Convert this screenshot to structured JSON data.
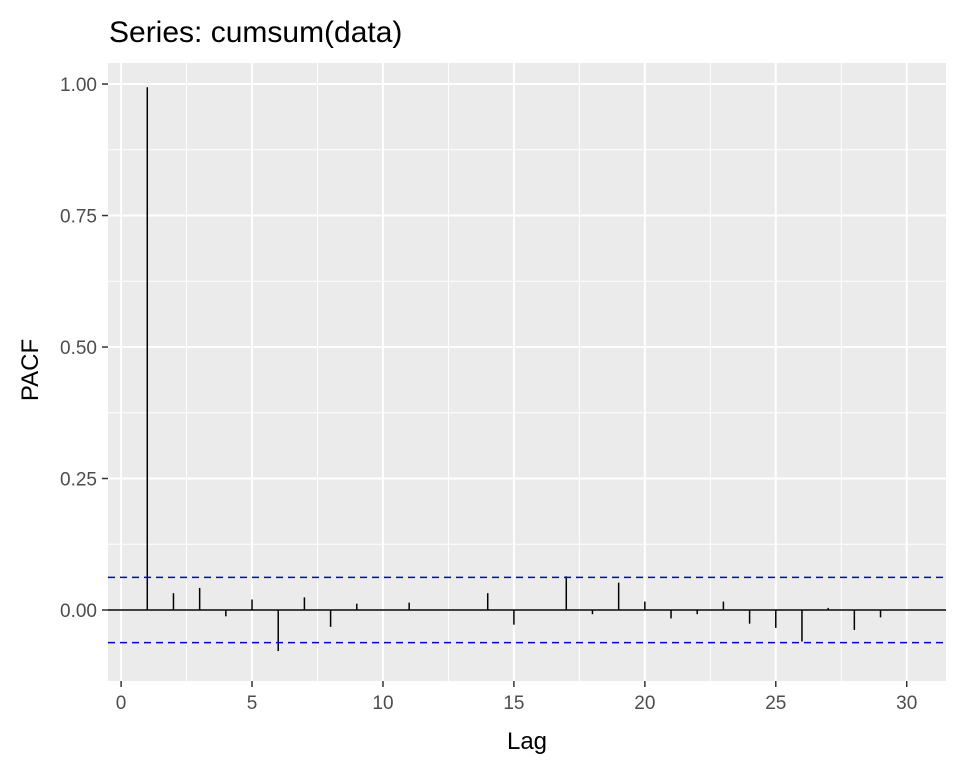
{
  "chart_data": {
    "type": "bar",
    "title": "Series: cumsum(data)",
    "xlabel": "Lag",
    "ylabel": "PACF",
    "xlim": [
      -0.5,
      31.5
    ],
    "ylim": [
      -0.135,
      1.04
    ],
    "x_ticks": [
      0,
      5,
      10,
      15,
      20,
      25,
      30
    ],
    "y_ticks": [
      0,
      0.25,
      0.5,
      0.75,
      1.0
    ],
    "x_tick_labels": [
      "0",
      "5",
      "10",
      "15",
      "20",
      "25",
      "30"
    ],
    "y_tick_labels": [
      "0.00",
      "0.25",
      "0.50",
      "0.75",
      "1.00"
    ],
    "grid": true,
    "confidence_bound": 0.062,
    "lags": [
      1,
      2,
      3,
      4,
      5,
      6,
      7,
      8,
      9,
      10,
      11,
      12,
      13,
      14,
      15,
      16,
      17,
      18,
      19,
      20,
      21,
      22,
      23,
      24,
      25,
      26,
      27,
      28,
      29,
      30
    ],
    "values": [
      0.994,
      0.032,
      0.042,
      -0.012,
      0.02,
      -0.078,
      0.024,
      -0.032,
      0.012,
      0.0,
      0.014,
      0.0,
      0.0,
      0.032,
      -0.028,
      0.0,
      0.064,
      -0.008,
      0.052,
      0.016,
      -0.016,
      -0.008,
      0.016,
      -0.026,
      -0.034,
      -0.06,
      0.004,
      -0.038,
      -0.014,
      0.0
    ],
    "colors": {
      "panel": "#ebebeb",
      "grid": "#ffffff",
      "bars": "#000000",
      "bounds": "#0000cc",
      "tick_text": "#4d4d4d",
      "tick_marks": "#333333"
    }
  }
}
